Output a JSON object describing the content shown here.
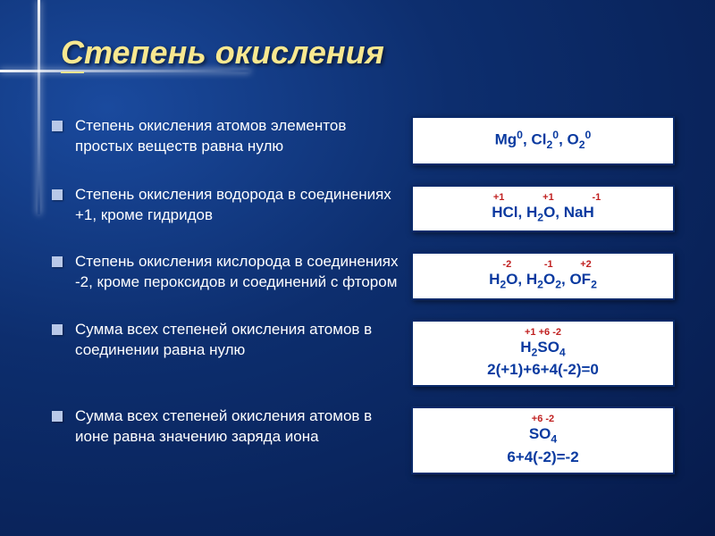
{
  "title_part1": "С",
  "title_part2": "тепень окисления",
  "bullets": [
    "Степень окисления атомов элементов простых веществ равна нулю",
    "Степень окисления водорода в соединениях +1, кроме гидридов",
    "Степень окисления кислорода в соединениях -2, кроме пероксидов и соединений с фтором",
    "Сумма всех степеней окисления атомов в соединении равна нулю",
    "Сумма всех степеней окисления атомов в ионе равна значению заряда иона"
  ],
  "boxes": [
    {
      "sup": "",
      "main_html": "Mg<sup>0</sup>, Cl<sub>2</sub><sup>0</sup>, O<sub>2</sub><sup>0</sup>"
    },
    {
      "sup": "   +1              +1              -1",
      "main_html": "HCl, H<sub>2</sub>O, NaH"
    },
    {
      "sup": "   -2            -1          +2",
      "main_html": "H<sub>2</sub>O, H<sub>2</sub>O<sub>2</sub>, OF<sub>2</sub>"
    },
    {
      "sup": "+1 +6 -2",
      "main_html": "H<sub>2</sub>SO<sub>4</sub><br>2(+1)+6+4(-2)=0"
    },
    {
      "sup": "+6 -2",
      "main_html": "SO<sub>4</sub><br>6+4(-2)=-2"
    }
  ],
  "colors": {
    "title": "#f8e890",
    "box_text": "#0a3aa0",
    "box_sup": "#c02020",
    "box_bg": "#ffffff",
    "bullet_sq": "#b8c8e8"
  },
  "fonts": {
    "title_size": 36,
    "body_size": 17,
    "box_main_size": 17,
    "box_sup_size": 11
  }
}
